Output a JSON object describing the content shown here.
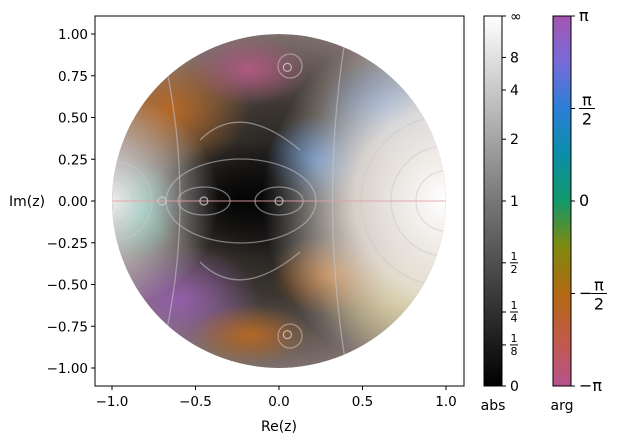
{
  "chart_data": {
    "type": "heatmap",
    "title": "",
    "xlabel": "Re(z)",
    "ylabel": "Im(z)",
    "xlim": [
      -1.1,
      1.1
    ],
    "ylim": [
      -1.1,
      1.1
    ],
    "domain": "unit disk",
    "x_ticks": [
      {
        "value": -1.0,
        "label": "−1.0"
      },
      {
        "value": -0.5,
        "label": "−0.5"
      },
      {
        "value": 0.0,
        "label": "0.0"
      },
      {
        "value": 0.5,
        "label": "0.5"
      },
      {
        "value": 1.0,
        "label": "1.0"
      }
    ],
    "y_ticks": [
      {
        "value": 1.0,
        "label": "1.00"
      },
      {
        "value": 0.75,
        "label": "0.75"
      },
      {
        "value": 0.5,
        "label": "0.50"
      },
      {
        "value": 0.25,
        "label": "0.25"
      },
      {
        "value": 0.0,
        "label": "0.00"
      },
      {
        "value": -0.25,
        "label": "−0.25"
      },
      {
        "value": -0.5,
        "label": "−0.50"
      },
      {
        "value": -0.75,
        "label": "−0.75"
      },
      {
        "value": -1.0,
        "label": "−1.00"
      }
    ],
    "features": {
      "zeros": [
        {
          "re": -0.45,
          "im": 0.0
        },
        {
          "re": 0.0,
          "im": 0.0
        },
        {
          "re": 0.05,
          "im": 0.8
        },
        {
          "re": 0.05,
          "im": -0.8
        },
        {
          "re": -0.7,
          "im": 0.0
        }
      ],
      "high_magnitude_region": {
        "re": 1.0,
        "im": 0.0
      }
    },
    "abs_colorbar": {
      "label": "abs",
      "ticks": [
        {
          "value": "∞",
          "pos": 1.0
        },
        {
          "value": "8",
          "pos": 0.888
        },
        {
          "value": "4",
          "pos": 0.8
        },
        {
          "value": "2",
          "pos": 0.667
        },
        {
          "value": "1",
          "pos": 0.5
        },
        {
          "value": "1/2",
          "pos": 0.333
        },
        {
          "value": "1/4",
          "pos": 0.2
        },
        {
          "value": "1/8",
          "pos": 0.111
        },
        {
          "value": "0",
          "pos": 0.0
        }
      ]
    },
    "arg_colorbar": {
      "label": "arg",
      "ticks": [
        {
          "value": "π",
          "pos": 1.0
        },
        {
          "value": "π/2",
          "pos": 0.75
        },
        {
          "value": "0",
          "pos": 0.5
        },
        {
          "value": "−π/2",
          "pos": 0.25
        },
        {
          "value": "−π",
          "pos": 0.0
        }
      ]
    }
  }
}
